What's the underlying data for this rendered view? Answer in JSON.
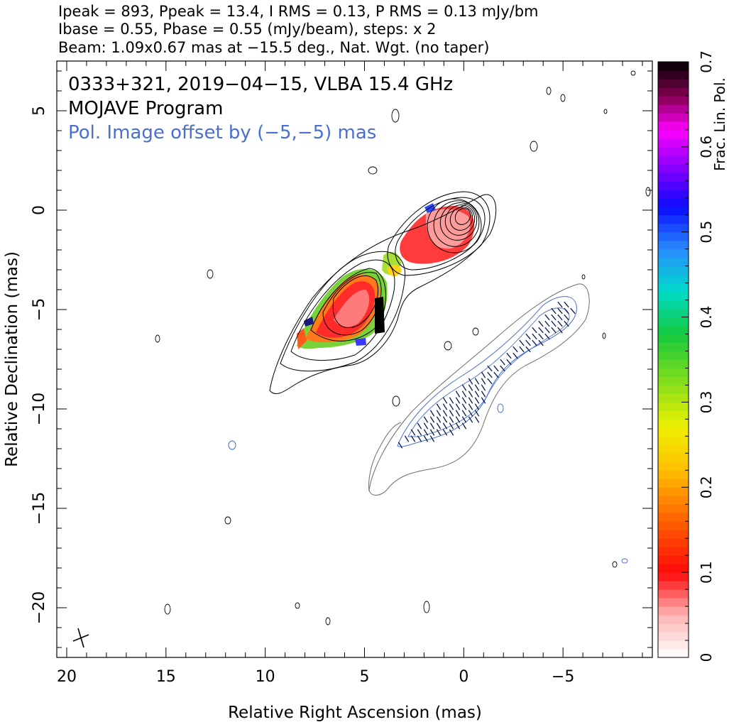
{
  "header": {
    "line1": "Ipeak = 893, Ppeak = 13.4, I RMS = 0.13, P RMS = 0.13 mJy/bm",
    "line2": "Ibase = 0.55, Pbase = 0.55 (mJy/beam), steps: x 2",
    "line3": "Beam: 1.09x0.67 mas at −15.5 deg., Nat. Wgt. (no taper)"
  },
  "annotations": {
    "source": "0333+321, 2019−04−15, VLBA 15.4 GHz",
    "program": "MOJAVE Program",
    "offset_note": "Pol. Image offset by (−5,−5) mas"
  },
  "colors": {
    "stokes_i_contour": "#000000",
    "pol_contour": "#4a6fd0",
    "offset_text": "#4a6fd0",
    "evpa_ticks": "#0a1a50"
  },
  "chart_data": {
    "type": "heatmap",
    "xlabel": "Relative Right Ascension (mas)",
    "ylabel": "Relative Declination (mas)",
    "xlim": [
      20.5,
      -9.5
    ],
    "ylim": [
      -22.5,
      7.5
    ],
    "x_ticks": [
      {
        "value": 20,
        "label": "20"
      },
      {
        "value": 15,
        "label": "15"
      },
      {
        "value": 10,
        "label": "10"
      },
      {
        "value": 5,
        "label": "5"
      },
      {
        "value": 0,
        "label": "0"
      },
      {
        "value": -5,
        "label": "−5"
      }
    ],
    "y_ticks": [
      {
        "value": 5,
        "label": "5"
      },
      {
        "value": 0,
        "label": "0"
      },
      {
        "value": -5,
        "label": "−5"
      },
      {
        "value": -10,
        "label": "−10"
      },
      {
        "value": -15,
        "label": "−15"
      },
      {
        "value": -20,
        "label": "−20"
      }
    ],
    "colorbar": {
      "label": "Frac. Lin. Pol.",
      "min": 0,
      "max": 0.7,
      "ticks": [
        {
          "value": 0,
          "label": "0"
        },
        {
          "value": 0.1,
          "label": "0.1"
        },
        {
          "value": 0.2,
          "label": "0.2"
        },
        {
          "value": 0.3,
          "label": "0.3"
        },
        {
          "value": 0.4,
          "label": "0.4"
        },
        {
          "value": 0.5,
          "label": "0.5"
        },
        {
          "value": 0.6,
          "label": "0.6"
        },
        {
          "value": 0.7,
          "label": "0.7"
        }
      ]
    },
    "core_position_mas": [
      0,
      0
    ],
    "jet_position_angle_deg": 125,
    "beam": {
      "major_mas": 1.09,
      "minor_mas": 0.67,
      "pa_deg": -15.5
    },
    "peak_intensity_mjy": 893,
    "polarization_offset_mas": [
      -5,
      -5
    ]
  }
}
